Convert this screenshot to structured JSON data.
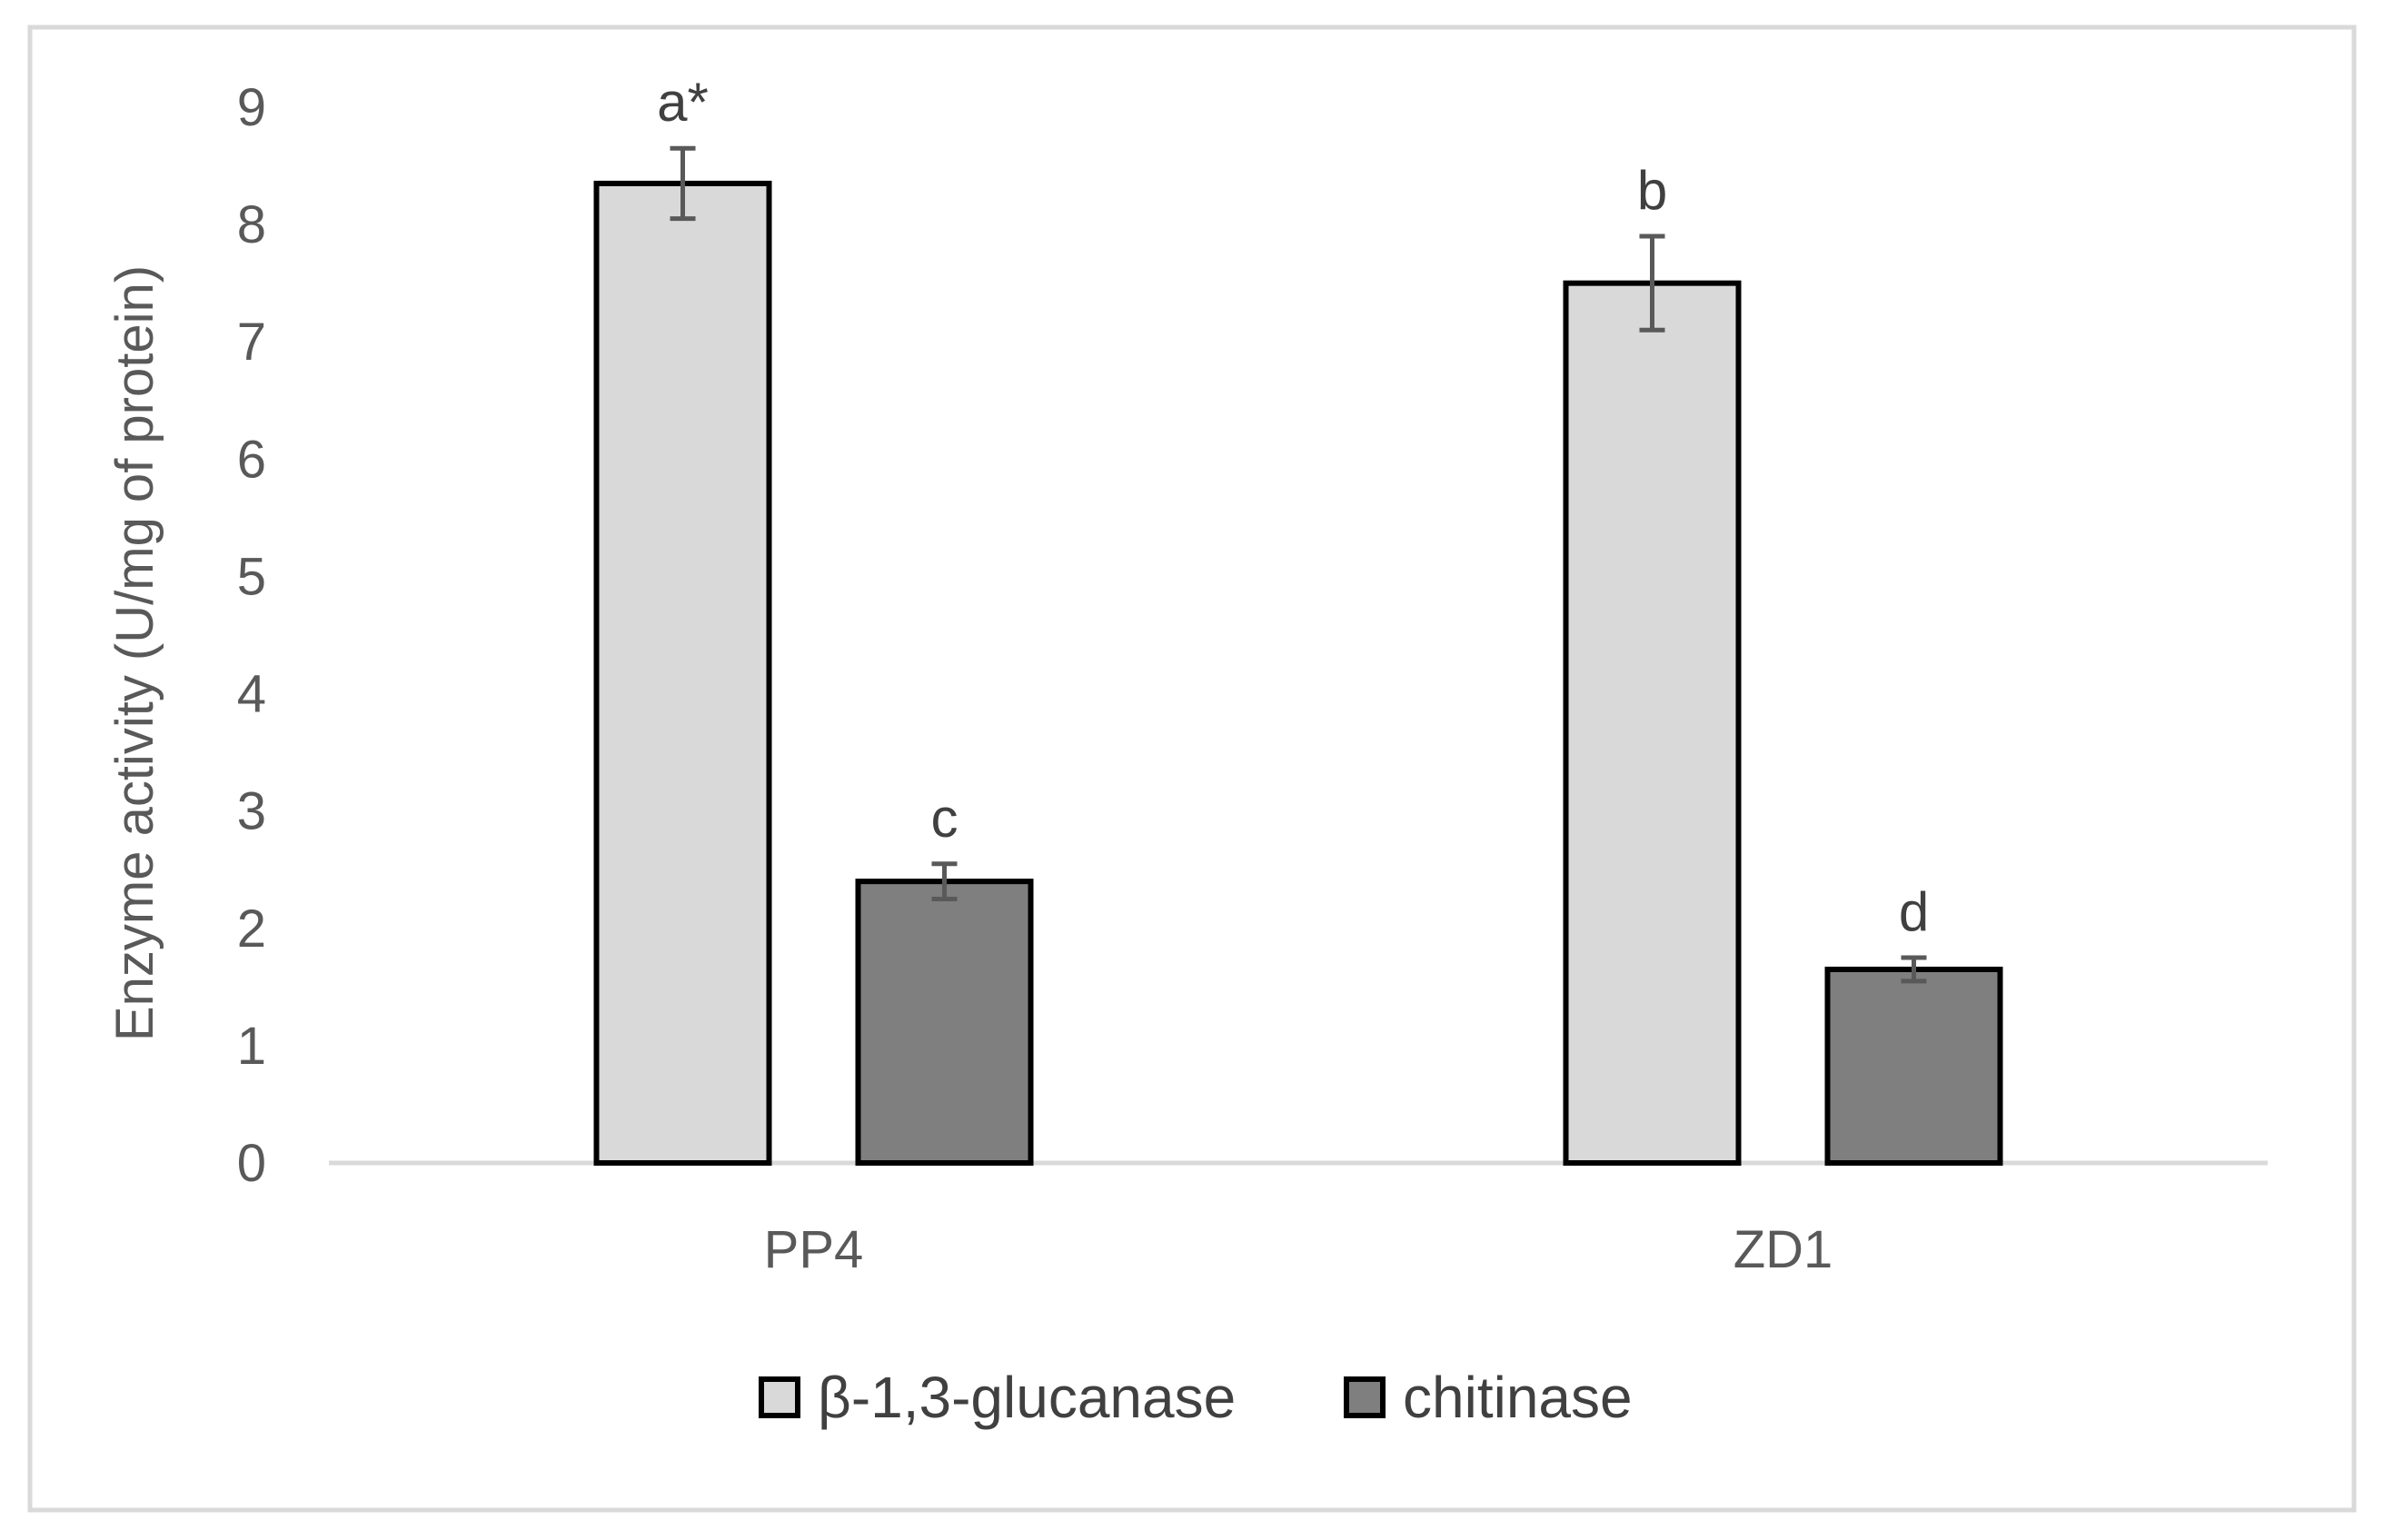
{
  "chart_data": {
    "type": "bar",
    "title": "",
    "xlabel": "",
    "ylabel": "Enzyme activity (U/mg of protein)",
    "ylim": [
      0,
      9
    ],
    "yticks": [
      0,
      1,
      2,
      3,
      4,
      5,
      6,
      7,
      8,
      9
    ],
    "grid": false,
    "legend_position": "bottom",
    "categories": [
      "PP4",
      "ZD1"
    ],
    "series": [
      {
        "name": "β-1,3-glucanase",
        "color": "#d9d9d9",
        "values": [
          8.35,
          7.5
        ],
        "errors": [
          0.3,
          0.4
        ],
        "labels": [
          "a*",
          "b"
        ]
      },
      {
        "name": "chitinase",
        "color": "#7f7f7f",
        "values": [
          2.4,
          1.65
        ],
        "errors": [
          0.15,
          0.1
        ],
        "labels": [
          "c",
          "d"
        ]
      }
    ]
  }
}
